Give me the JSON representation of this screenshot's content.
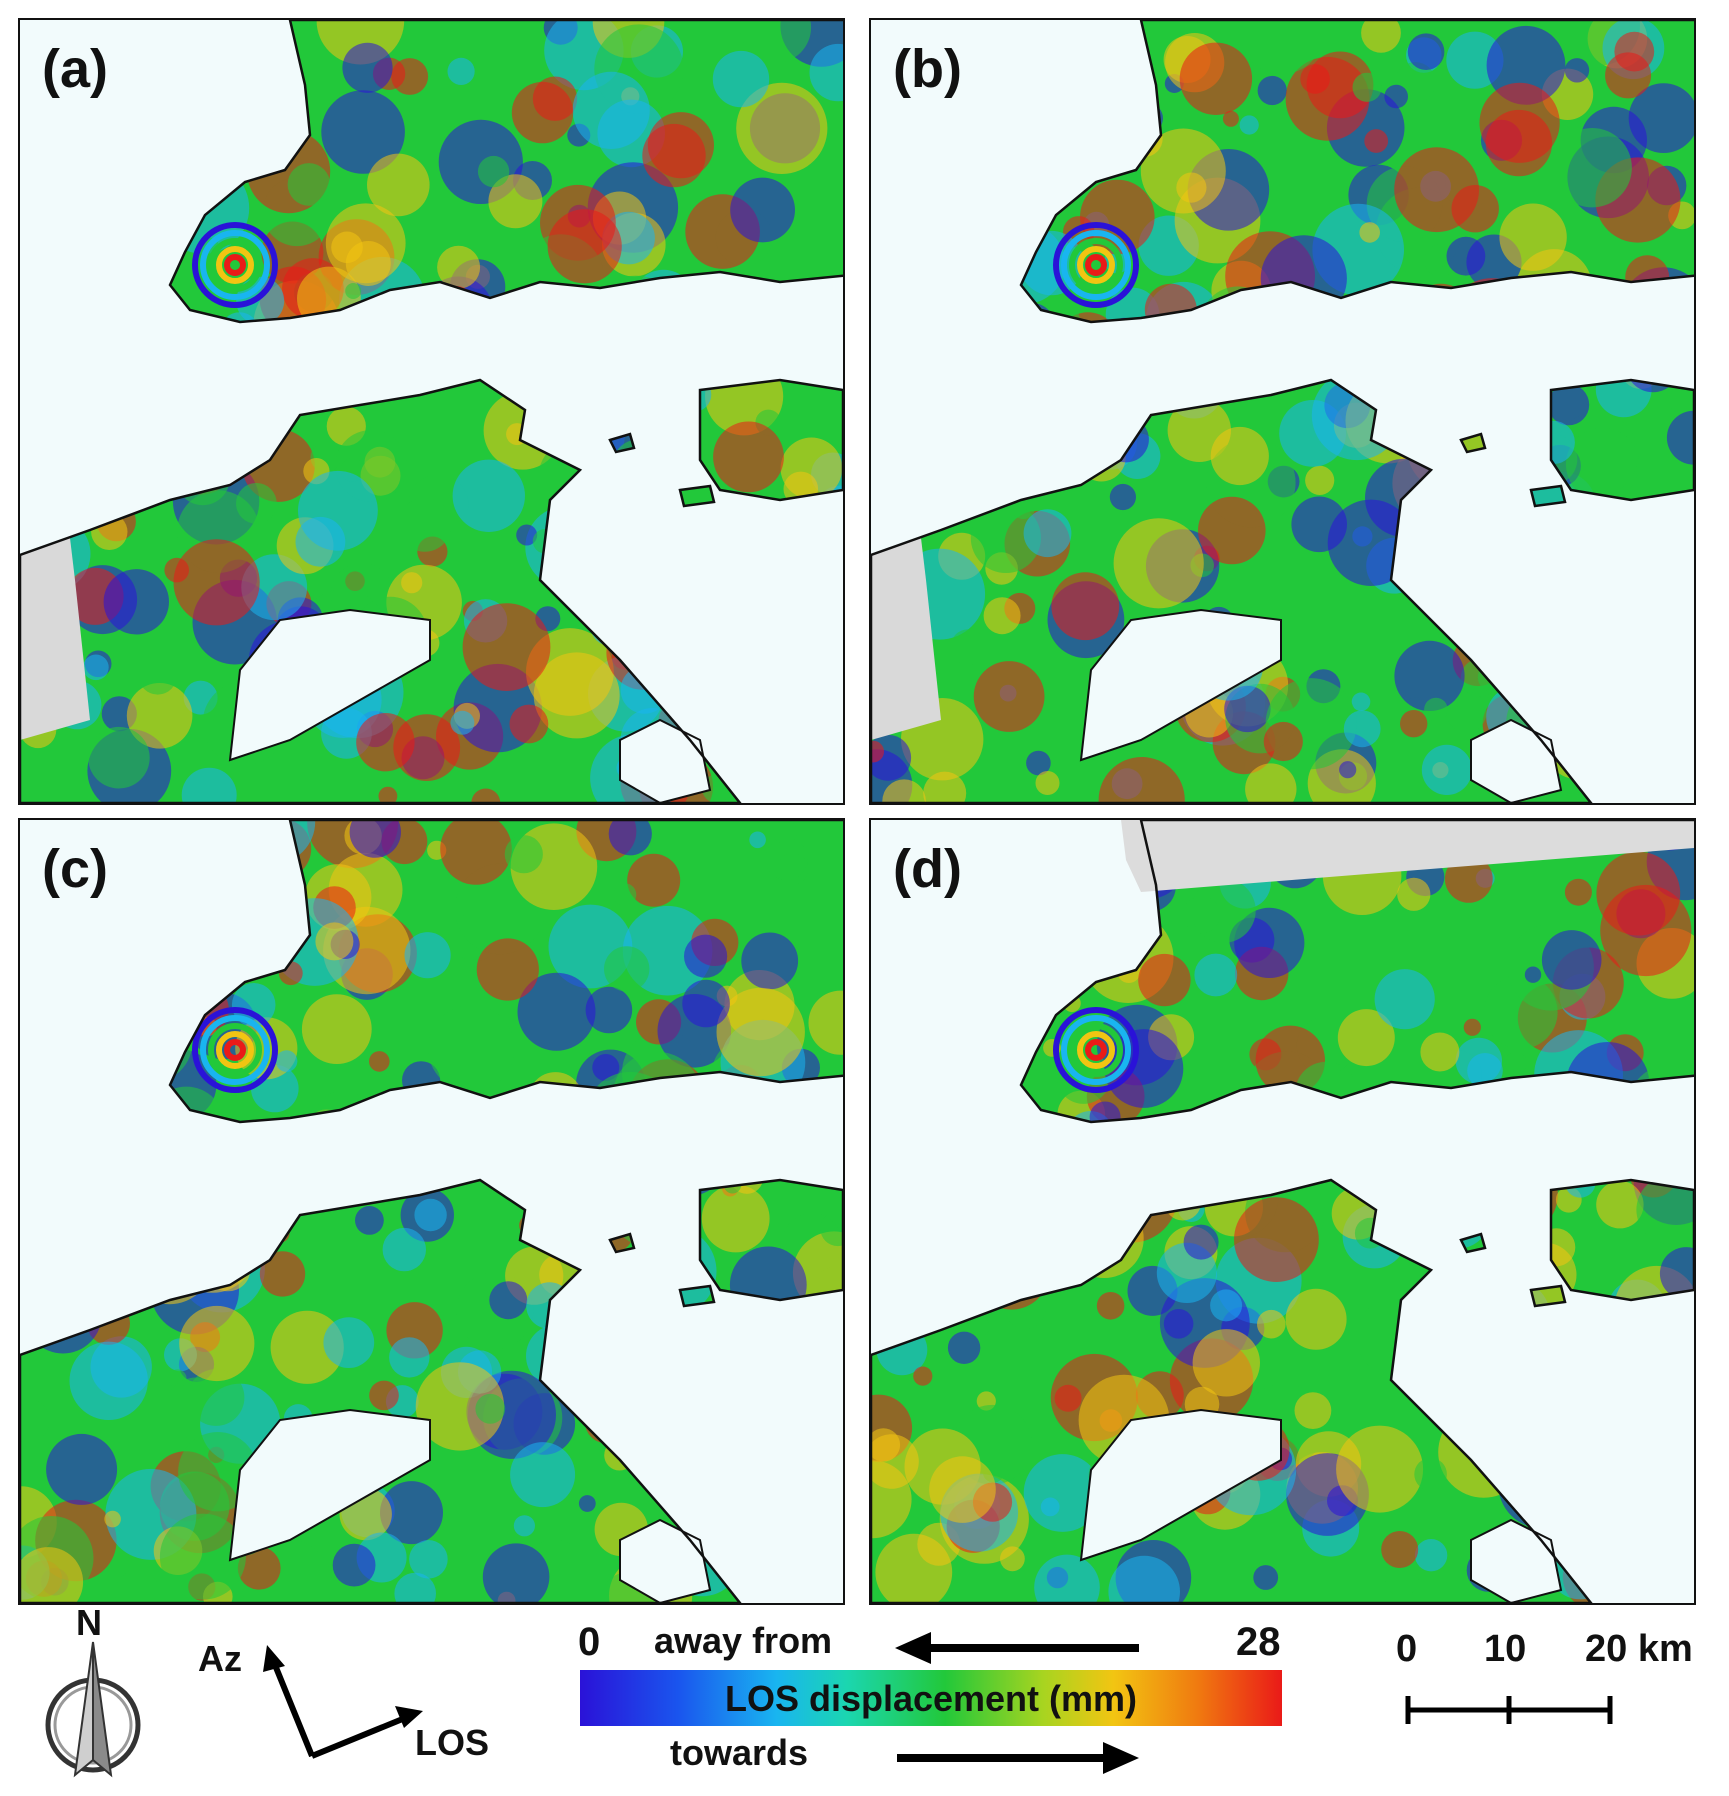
{
  "panels": [
    {
      "label": "(a)"
    },
    {
      "label": "(b)"
    },
    {
      "label": "(c)"
    },
    {
      "label": "(d)"
    }
  ],
  "legend": {
    "north_label": "N",
    "azimuth_label": "Az",
    "los_label": "LOS",
    "colorbar_min": "0",
    "colorbar_max": "28",
    "colorbar_title": "LOS displacement (mm)",
    "away_label": "away from",
    "towards_label": "towards",
    "colors": [
      "#2a12d8",
      "#19b5f0",
      "#22c83a",
      "#f2c512",
      "#ea1a18"
    ],
    "scale": {
      "tick0": "0",
      "tick1": "10",
      "tick2": "20 km"
    }
  }
}
